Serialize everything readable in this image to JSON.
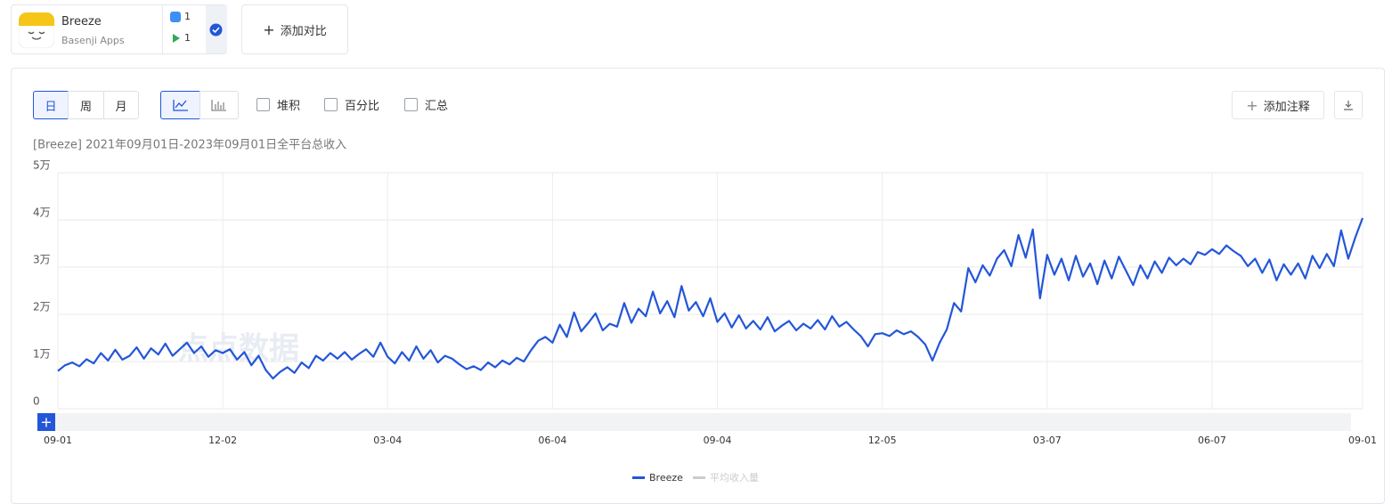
{
  "app": {
    "name": "Breeze",
    "developer": "Basenji Apps",
    "ios_count": "1",
    "android_count": "1"
  },
  "toolbar": {
    "add_compare": "添加对比",
    "day": "日",
    "week": "周",
    "month": "月",
    "stack": "堆积",
    "percent": "百分比",
    "total": "汇总",
    "add_note": "添加注释",
    "nav_plus": "+"
  },
  "watermark": "点点数据",
  "chart_data": {
    "type": "line",
    "subtitle": "[Breeze]  2021年09月01日-2023年09月01日全平台总收入",
    "ylim": [
      0,
      50000
    ],
    "yticks": [
      {
        "value": 0,
        "label": "0"
      },
      {
        "value": 10000,
        "label": "1万"
      },
      {
        "value": 20000,
        "label": "2万"
      },
      {
        "value": 30000,
        "label": "3万"
      },
      {
        "value": 40000,
        "label": "4万"
      },
      {
        "value": 50000,
        "label": "5万"
      }
    ],
    "grid": true,
    "legend_inactive": {
      "name": "平均收入量",
      "color": "#cccccc"
    },
    "categories": [
      "09-01",
      null,
      null,
      null,
      null,
      null,
      null,
      null,
      null,
      null,
      null,
      null,
      null,
      null,
      null,
      null,
      null,
      null,
      null,
      null,
      null,
      null,
      null,
      "12-02",
      null,
      null,
      null,
      null,
      null,
      null,
      null,
      null,
      null,
      null,
      null,
      null,
      null,
      null,
      null,
      null,
      null,
      null,
      null,
      null,
      null,
      null,
      "03-04",
      null,
      null,
      null,
      null,
      null,
      null,
      null,
      null,
      null,
      null,
      null,
      null,
      null,
      null,
      null,
      null,
      null,
      null,
      null,
      null,
      null,
      null,
      "06-04",
      null,
      null,
      null,
      null,
      null,
      null,
      null,
      null,
      null,
      null,
      null,
      null,
      null,
      null,
      null,
      null,
      null,
      null,
      null,
      null,
      null,
      null,
      "09-04",
      null,
      null,
      null,
      null,
      null,
      null,
      null,
      null,
      null,
      null,
      null,
      null,
      null,
      null,
      null,
      null,
      null,
      null,
      null,
      null,
      null,
      null,
      "12-05",
      null,
      null,
      null,
      null,
      null,
      null,
      null,
      null,
      null,
      null,
      null,
      null,
      null,
      null,
      null,
      null,
      null,
      null,
      null,
      null,
      null,
      null,
      "03-07",
      null,
      null,
      null,
      null,
      null,
      null,
      null,
      null,
      null,
      null,
      null,
      null,
      null,
      null,
      null,
      null,
      null,
      null,
      null,
      null,
      null,
      null,
      "06-07",
      null,
      null,
      null,
      null,
      null,
      null,
      null,
      null,
      null,
      null,
      null,
      null,
      null,
      null,
      null,
      null,
      null,
      null,
      null,
      null,
      "09-01"
    ],
    "series": [
      {
        "name": "Breeze",
        "color": "#2356d8",
        "values": [
          8000,
          9200,
          9800,
          9000,
          10500,
          9600,
          11800,
          10200,
          12500,
          10400,
          11200,
          13000,
          10600,
          12800,
          11500,
          13800,
          11200,
          12600,
          14000,
          11800,
          13200,
          11000,
          12400,
          11800,
          12600,
          10400,
          12000,
          9200,
          11200,
          8200,
          6400,
          7800,
          8800,
          7600,
          9800,
          8600,
          11200,
          10200,
          11800,
          10600,
          12000,
          10400,
          11600,
          12600,
          11000,
          14000,
          11000,
          9600,
          12000,
          10200,
          13200,
          10600,
          12400,
          9800,
          11200,
          10600,
          9400,
          8400,
          9000,
          8200,
          9800,
          8800,
          10200,
          9400,
          10800,
          10000,
          12400,
          14400,
          15200,
          14000,
          17800,
          15200,
          20400,
          16400,
          18200,
          20200,
          16600,
          18000,
          17400,
          22400,
          18200,
          21200,
          19600,
          24800,
          20200,
          22800,
          19400,
          26000,
          20800,
          22600,
          19600,
          23400,
          18400,
          20200,
          17200,
          19800,
          17000,
          18600,
          16800,
          19400,
          16400,
          17600,
          18600,
          16600,
          18000,
          17000,
          18800,
          16800,
          19600,
          17400,
          18400,
          16800,
          15400,
          13200,
          15800,
          16000,
          15400,
          16600,
          15800,
          16400,
          15200,
          13600,
          10200,
          14000,
          16800,
          22400,
          20600,
          29800,
          26800,
          30400,
          28200,
          31800,
          33600,
          30200,
          36800,
          32000,
          38000,
          23400,
          32600,
          28400,
          31800,
          27200,
          32400,
          28000,
          30800,
          26400,
          31400,
          27600,
          32200,
          29200,
          26200,
          30400,
          27600,
          31200,
          28800,
          32000,
          30400,
          31800,
          30600,
          33200,
          32600,
          33800,
          32800,
          34600,
          33400,
          32400,
          30200,
          31800,
          28800,
          31600,
          27200,
          30600,
          28400,
          30800,
          27600,
          32400,
          29800,
          32800,
          30200,
          37800,
          31800,
          36400,
          40400
        ]
      }
    ]
  }
}
